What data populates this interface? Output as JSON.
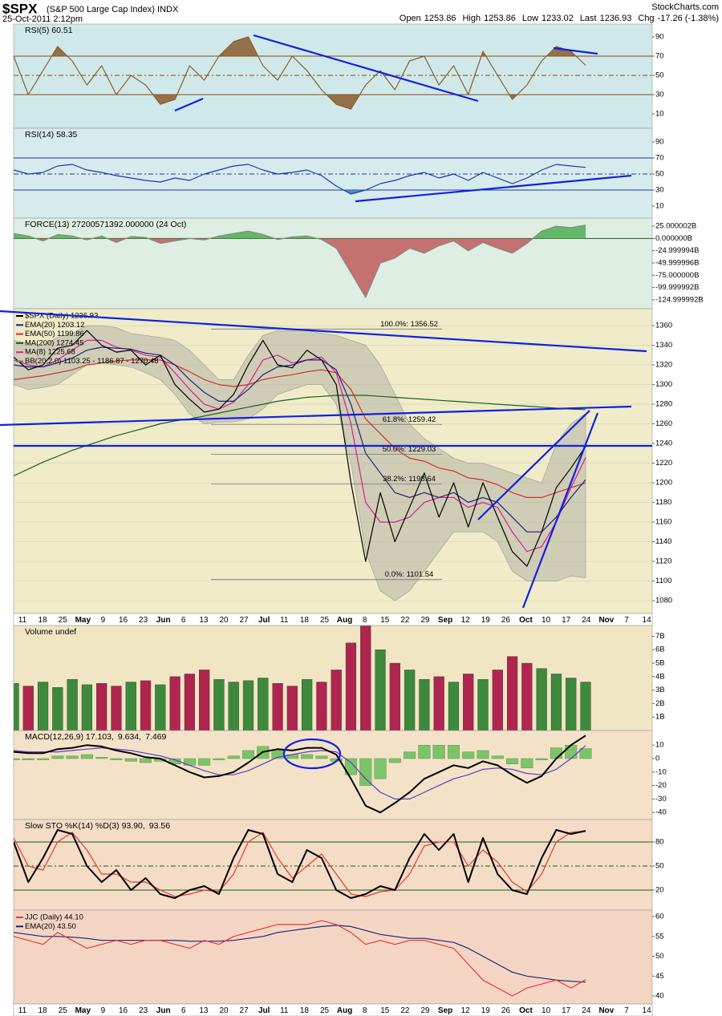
{
  "header": {
    "symbol": "$SPX",
    "name": "(S&P 500 Large Cap Index)",
    "exchange": "INDX",
    "site": "StockCharts.com",
    "date": "25-Oct-2011 2:12pm",
    "quote": [
      {
        "label": "Open",
        "value": 1253.86
      },
      {
        "label": "High",
        "value": 1253.86
      },
      {
        "label": "Low",
        "value": 1233.02
      },
      {
        "label": "Last",
        "value": 1236.93
      }
    ],
    "change_label": "Chg",
    "change": "-17.26 (-1.38%)"
  },
  "x_axis_labels": [
    "11",
    "18",
    "25",
    "May",
    "9",
    "16",
    "23",
    "Jun",
    "6",
    "13",
    "20",
    "27",
    "Jul",
    "11",
    "18",
    "25",
    "Aug",
    "8",
    "15",
    "22",
    "29",
    "Sep",
    "12",
    "19",
    "26",
    "Oct",
    "10",
    "17",
    "24",
    "Nov",
    "7",
    "14"
  ],
  "chart_data": [
    {
      "type": "line",
      "ylim": [
        0,
        100
      ],
      "yticks": [
        90,
        70,
        50,
        30,
        10
      ],
      "legend_layout": "row",
      "level_color": "#8b4513",
      "levels": [
        {
          "value": 70
        },
        {
          "value": 50,
          "dash": true
        },
        {
          "value": 30
        }
      ],
      "series": [
        {
          "name": "RSI(5) 60.51",
          "color": "#8b5a2b",
          "fill": [
            {
              "above": 70,
              "color": "#8b5a2b"
            },
            {
              "below": 30,
              "color": "#8b5a2b"
            }
          ],
          "values": [
            70,
            30,
            55,
            80,
            65,
            40,
            60,
            30,
            50,
            40,
            20,
            25,
            60,
            45,
            70,
            85,
            90,
            60,
            45,
            70,
            55,
            35,
            20,
            15,
            40,
            55,
            35,
            65,
            70,
            40,
            60,
            30,
            75,
            50,
            25,
            40,
            65,
            80,
            75,
            60.51
          ]
        }
      ]
    },
    {
      "type": "line",
      "ylim": [
        0,
        100
      ],
      "yticks": [
        90,
        70,
        50,
        30,
        10
      ],
      "legend_layout": "row",
      "level_color": "#2233aa",
      "levels": [
        {
          "value": 70
        },
        {
          "value": 50,
          "dash": true
        },
        {
          "value": 30
        }
      ],
      "series": [
        {
          "name": "RSI(14) 58.35",
          "color": "#2233aa",
          "fill": [
            {
              "below": 30,
              "color": "#3a7fc0"
            }
          ],
          "values": [
            55,
            50,
            52,
            60,
            62,
            55,
            52,
            48,
            45,
            42,
            40,
            45,
            42,
            50,
            55,
            60,
            62,
            55,
            50,
            52,
            55,
            48,
            35,
            25,
            30,
            38,
            42,
            48,
            52,
            45,
            50,
            42,
            52,
            45,
            38,
            45,
            55,
            62,
            60,
            58.35
          ]
        }
      ]
    },
    {
      "type": "line",
      "ylim": [
        -135,
        30
      ],
      "legend_layout": "row",
      "level_color": "#1a5c1a",
      "levels": [
        {
          "value": 0
        }
      ],
      "yticks": [
        {
          "value": 25.000002,
          "label": "25.000002B"
        },
        {
          "value": 0,
          "label": "0.000000B"
        },
        {
          "value": -24.999994,
          "label": "-24.999994B"
        },
        {
          "value": -49.999996,
          "label": "-49.999996B"
        },
        {
          "value": -75,
          "label": "-75.000000B"
        },
        {
          "value": -99.999992,
          "label": "-99.999992B"
        },
        {
          "value": -124.999992,
          "label": "-124.999992B"
        }
      ],
      "series": [
        {
          "name": "FORCE(13) 27200571392.000000 (24 Oct)",
          "color": "#888",
          "fill": [
            {
              "above": 0,
              "color": "#4caf50"
            },
            {
              "below": 0,
              "color": "#c05a5a"
            }
          ],
          "values": [
            10,
            5,
            -5,
            8,
            5,
            -3,
            5,
            -8,
            4,
            2,
            -10,
            -5,
            0,
            -3,
            5,
            10,
            15,
            8,
            -2,
            3,
            5,
            -2,
            -20,
            -70,
            -120,
            -50,
            -40,
            -20,
            -30,
            -15,
            -5,
            -25,
            -8,
            -20,
            -30,
            -10,
            15,
            25,
            22,
            27.200571392
          ]
        }
      ]
    },
    {
      "type": "price",
      "ylim": [
        1066,
        1374
      ],
      "yticks": [
        1080,
        1100,
        1120,
        1140,
        1160,
        1180,
        1200,
        1220,
        1240,
        1260,
        1280,
        1300,
        1320,
        1340,
        1360
      ],
      "grid": true,
      "legend_layout": "stack",
      "band": {
        "name": "BB(20,2.0) 1103.25 - 1186.87 - 1270.48",
        "color": "#a8a8a0",
        "upper": [
          1345,
          1342,
          1340,
          1348,
          1352,
          1360,
          1360,
          1358,
          1352,
          1350,
          1348,
          1345,
          1335,
          1320,
          1305,
          1305,
          1330,
          1350,
          1355,
          1355,
          1355,
          1352,
          1350,
          1345,
          1340,
          1320,
          1290,
          1260,
          1245,
          1235,
          1225,
          1220,
          1220,
          1215,
          1210,
          1205,
          1200,
          1240,
          1260,
          1270.48
        ],
        "lower": [
          1300,
          1295,
          1297,
          1300,
          1310,
          1320,
          1322,
          1320,
          1318,
          1312,
          1305,
          1290,
          1270,
          1260,
          1262,
          1262,
          1265,
          1275,
          1290,
          1295,
          1300,
          1300,
          1280,
          1220,
          1130,
          1090,
          1080,
          1090,
          1110,
          1130,
          1150,
          1150,
          1150,
          1140,
          1110,
          1100,
          1100,
          1100,
          1105,
          1103.25
        ]
      },
      "series": [
        {
          "name": "$SPX (Daily) 1236.93",
          "color": "#000000",
          "values": [
            1328,
            1315,
            1320,
            1337,
            1340,
            1355,
            1340,
            1333,
            1335,
            1320,
            1330,
            1300,
            1285,
            1272,
            1275,
            1290,
            1320,
            1345,
            1320,
            1317,
            1335,
            1325,
            1300,
            1200,
            1120,
            1190,
            1140,
            1175,
            1210,
            1165,
            1200,
            1155,
            1200,
            1165,
            1130,
            1115,
            1150,
            1195,
            1215,
            1236.93
          ]
        },
        {
          "name": "EMA(20) 1203.12",
          "color": "#1a237e",
          "values": [
            1320,
            1318,
            1318,
            1322,
            1327,
            1335,
            1338,
            1337,
            1336,
            1332,
            1330,
            1320,
            1305,
            1292,
            1283,
            1283,
            1295,
            1310,
            1318,
            1320,
            1325,
            1325,
            1315,
            1280,
            1230,
            1210,
            1190,
            1185,
            1190,
            1185,
            1190,
            1180,
            1185,
            1180,
            1165,
            1150,
            1150,
            1165,
            1185,
            1203.12
          ]
        },
        {
          "name": "EMA(50) 1199.86",
          "color": "#d32f2f",
          "values": [
            1305,
            1307,
            1309,
            1312,
            1315,
            1320,
            1322,
            1324,
            1325,
            1325,
            1325,
            1320,
            1313,
            1305,
            1300,
            1298,
            1300,
            1305,
            1308,
            1310,
            1313,
            1315,
            1312,
            1295,
            1265,
            1250,
            1235,
            1225,
            1222,
            1215,
            1212,
            1205,
            1203,
            1198,
            1190,
            1185,
            1185,
            1190,
            1195,
            1199.86
          ]
        },
        {
          "name": "MA(200) 1274.45",
          "color": "#1b5e20",
          "values": [
            1207,
            1214,
            1221,
            1227,
            1233,
            1238,
            1243,
            1248,
            1252,
            1256,
            1260,
            1263,
            1265,
            1268,
            1271,
            1274,
            1277,
            1280,
            1283,
            1285,
            1287,
            1288,
            1289,
            1289,
            1289,
            1288,
            1287,
            1286,
            1285,
            1284,
            1283,
            1282,
            1281,
            1280,
            1279,
            1278,
            1277,
            1276,
            1275,
            1274.45
          ]
        },
        {
          "name": "MA(8) 1225.68",
          "color": "#d81b9a",
          "values": [
            1325,
            1320,
            1318,
            1325,
            1335,
            1345,
            1345,
            1338,
            1335,
            1330,
            1328,
            1312,
            1295,
            1280,
            1275,
            1282,
            1300,
            1325,
            1330,
            1322,
            1325,
            1328,
            1312,
            1260,
            1180,
            1160,
            1160,
            1165,
            1180,
            1185,
            1185,
            1175,
            1180,
            1175,
            1150,
            1130,
            1135,
            1160,
            1195,
            1225.68
          ]
        }
      ],
      "fib_levels": [
        {
          "label": "100.0%: 1356.52",
          "value": 1356.52
        },
        {
          "label": "61.8%: 1259.42",
          "value": 1259.42
        },
        {
          "label": "50.0%: 1229.03",
          "value": 1229.03
        },
        {
          "label": "38.2%: 1198.64",
          "value": 1198.64
        },
        {
          "label": "0.0%: 1101.54",
          "value": 1101.54
        }
      ]
    },
    {
      "type": "volume",
      "ylim": [
        0,
        7.8
      ],
      "legend_layout": "row",
      "up_color": "#3d8a3d",
      "down_color": "#b02450",
      "yticks": [
        {
          "value": 7,
          "label": "7B"
        },
        {
          "value": 6,
          "label": "6B"
        },
        {
          "value": 5,
          "label": "5B"
        },
        {
          "value": 4,
          "label": "4B"
        },
        {
          "value": 3,
          "label": "3B"
        },
        {
          "value": 2,
          "label": "2B"
        },
        {
          "value": 1,
          "label": "1B"
        }
      ],
      "series": [
        {
          "name": "Volume undef",
          "color": "#000000",
          "values": [
            3.5,
            3.3,
            3.6,
            3.2,
            3.8,
            3.4,
            3.5,
            3.3,
            3.6,
            3.7,
            3.4,
            4.0,
            4.2,
            4.5,
            3.8,
            3.6,
            3.7,
            3.9,
            3.5,
            3.3,
            3.8,
            3.6,
            4.5,
            6.5,
            7.8,
            6.0,
            5.0,
            4.5,
            3.8,
            4.0,
            3.6,
            4.2,
            3.8,
            4.5,
            5.5,
            5.0,
            4.6,
            4.2,
            3.9,
            3.6
          ]
        }
      ]
    },
    {
      "type": "line",
      "ylim": [
        -45,
        20
      ],
      "yticks": [
        10,
        0,
        -10,
        -20,
        -30,
        -40
      ],
      "legend_layout": "row",
      "series": [
        {
          "name": "MACD(12,26,9) 17.103,",
          "color": "#000000",
          "width": 2,
          "values": [
            5,
            4,
            4,
            7,
            8,
            10,
            9,
            6,
            4,
            1,
            0,
            -5,
            -10,
            -14,
            -13,
            -10,
            -3,
            5,
            7,
            6,
            8,
            8,
            3,
            -15,
            -35,
            -40,
            -33,
            -25,
            -15,
            -10,
            -5,
            -7,
            -2,
            -5,
            -12,
            -18,
            -13,
            0,
            10,
            17.103
          ]
        },
        {
          "name": "9.634,",
          "color": "#5a3fc0",
          "values": [
            6,
            5,
            5,
            5,
            6,
            7,
            8,
            7,
            6,
            4,
            2,
            -1,
            -5,
            -9,
            -12,
            -12,
            -9,
            -4,
            1,
            3,
            5,
            6,
            5,
            -3,
            -15,
            -25,
            -30,
            -30,
            -25,
            -20,
            -15,
            -12,
            -8,
            -7,
            -8,
            -11,
            -12,
            -8,
            0,
            9.634
          ]
        },
        {
          "name": "7.469",
          "color": "#7cc46a",
          "style": "bar",
          "values": [
            -1,
            -1,
            -1,
            2,
            2,
            3,
            1,
            -1,
            -2,
            -3,
            -2,
            -4,
            -5,
            -5,
            -1,
            2,
            6,
            9,
            6,
            3,
            3,
            2,
            -2,
            -12,
            -20,
            -15,
            -3,
            5,
            10,
            10,
            10,
            5,
            6,
            2,
            -4,
            -7,
            -1,
            8,
            10,
            7.469
          ]
        }
      ]
    },
    {
      "type": "line",
      "ylim": [
        0,
        100
      ],
      "yticks": [
        80,
        50,
        20
      ],
      "legend_layout": "row",
      "level_color": "#1a5c1a",
      "levels": [
        {
          "value": 80
        },
        {
          "value": 50,
          "dash": true
        },
        {
          "value": 20
        }
      ],
      "series": [
        {
          "name": "Slow STO %K(14) %D(3) 93.90,",
          "color": "#000000",
          "width": 2,
          "values": [
            80,
            30,
            60,
            95,
            90,
            50,
            30,
            45,
            20,
            35,
            15,
            10,
            20,
            25,
            15,
            60,
            95,
            90,
            40,
            30,
            70,
            60,
            20,
            10,
            15,
            25,
            20,
            60,
            90,
            70,
            90,
            30,
            85,
            40,
            20,
            15,
            60,
            95,
            90,
            93.9
          ]
        },
        {
          "name": "93.56",
          "color": "#e53935",
          "values": [
            85,
            50,
            45,
            80,
            92,
            70,
            40,
            40,
            30,
            30,
            20,
            12,
            15,
            20,
            18,
            40,
            80,
            92,
            60,
            35,
            50,
            65,
            40,
            15,
            12,
            18,
            20,
            40,
            75,
            80,
            80,
            50,
            70,
            55,
            30,
            18,
            40,
            80,
            92,
            93.56
          ]
        }
      ]
    },
    {
      "type": "line",
      "ylim": [
        38,
        62
      ],
      "yticks": [
        60,
        55,
        50,
        45,
        40
      ],
      "legend_layout": "stack",
      "series": [
        {
          "name": "JJC (Daily) 44.10",
          "color": "#e53935",
          "values": [
            55,
            54,
            53,
            56,
            54,
            52,
            53,
            54,
            53,
            54,
            54,
            53,
            52,
            54,
            53,
            55,
            56,
            57,
            58,
            58,
            58,
            59,
            58,
            56,
            53,
            54,
            53,
            54,
            54,
            53,
            52,
            48,
            44,
            42,
            40,
            42,
            43,
            44,
            42,
            44.1
          ]
        },
        {
          "name": "EMA(20) 43.50",
          "color": "#1a237e",
          "values": [
            56,
            55.5,
            55,
            55,
            54.8,
            54.5,
            54,
            54,
            54,
            54,
            54,
            54,
            53.8,
            53.8,
            53.8,
            54,
            54.5,
            55,
            56,
            56.5,
            57,
            57.5,
            57.8,
            57.5,
            56.5,
            55.5,
            55,
            54.5,
            54.5,
            54,
            53.5,
            52,
            50,
            48,
            46,
            45,
            44.5,
            44,
            43.7,
            43.5
          ]
        }
      ]
    }
  ]
}
